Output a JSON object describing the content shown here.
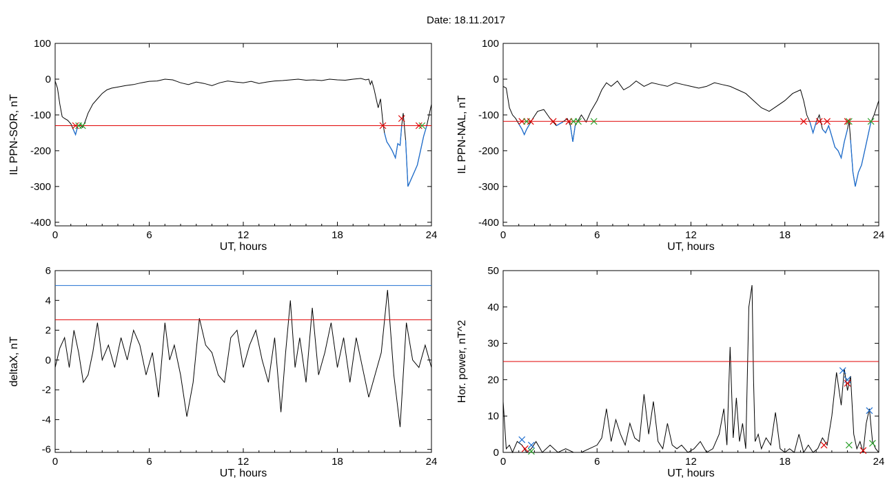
{
  "header": {
    "date_label": "Date:  18.11.2017"
  },
  "colors": {
    "trace": "#000000",
    "threshold": "#e00000",
    "blue_line": "#1f6fd0",
    "marker_red": "#e00000",
    "marker_green": "#2ca02c",
    "marker_blue": "#1f6fd0"
  },
  "chart_data": [
    {
      "id": "ppn-sor",
      "type": "line",
      "ylabel": "IL PPN-SOR, nT",
      "xlabel": "UT, hours",
      "xlim": [
        0,
        24
      ],
      "ylim": [
        -410,
        100
      ],
      "xticks": [
        0,
        6,
        12,
        18,
        24
      ],
      "yticks": [
        100,
        0,
        -100,
        -200,
        -300,
        -400
      ],
      "threshold": -130,
      "series": [
        {
          "x": [
            0,
            0.15,
            0.3,
            0.45,
            0.6,
            0.8,
            1.0,
            1.15,
            1.3,
            1.45,
            1.6,
            1.75,
            1.9,
            2.1,
            2.4,
            2.7,
            3.0,
            3.3,
            3.6,
            4.0,
            4.5,
            5.0,
            5.5,
            6.0,
            6.5,
            7.0,
            7.5,
            8.0,
            8.5,
            9.0,
            9.5,
            10.0,
            10.5,
            11.0,
            11.5,
            12.0,
            12.5,
            13.0,
            13.5,
            14.0,
            14.5,
            15.0,
            15.5,
            16.0,
            16.5,
            17.0,
            17.5,
            18.0,
            18.5,
            19.0,
            19.5,
            19.8,
            20.0,
            20.1,
            20.2,
            20.35,
            20.5,
            20.6,
            20.75,
            20.9,
            21.0,
            21.15,
            21.3,
            21.5,
            21.7,
            21.85,
            22.0,
            22.1,
            22.2,
            22.35,
            22.5,
            22.7,
            22.9,
            23.1,
            23.3,
            23.5,
            23.7,
            23.85,
            24.0
          ],
          "y": [
            -5,
            -25,
            -70,
            -105,
            -110,
            -115,
            -125,
            -140,
            -155,
            -130,
            -128,
            -135,
            -120,
            -95,
            -70,
            -55,
            -40,
            -30,
            -25,
            -22,
            -18,
            -15,
            -10,
            -6,
            -5,
            0,
            -2,
            -10,
            -15,
            -8,
            -12,
            -18,
            -10,
            -5,
            -8,
            -10,
            -6,
            -12,
            -8,
            -5,
            -4,
            -2,
            0,
            -3,
            -2,
            -4,
            0,
            -2,
            -3,
            0,
            2,
            -2,
            0,
            -15,
            -5,
            -30,
            -60,
            -80,
            -55,
            -120,
            -150,
            -175,
            -185,
            -200,
            -220,
            -180,
            -185,
            -130,
            -95,
            -170,
            -300,
            -280,
            -260,
            -240,
            -200,
            -160,
            -130,
            -100,
            -70
          ]
        }
      ],
      "markers": [
        {
          "x": 1.3,
          "y": -130,
          "color": "red"
        },
        {
          "x": 1.5,
          "y": -130,
          "color": "green"
        },
        {
          "x": 1.75,
          "y": -130,
          "color": "green"
        },
        {
          "x": 20.9,
          "y": -130,
          "color": "red"
        },
        {
          "x": 22.1,
          "y": -110,
          "color": "red"
        },
        {
          "x": 23.2,
          "y": -130,
          "color": "red"
        },
        {
          "x": 23.4,
          "y": -130,
          "color": "green"
        }
      ]
    },
    {
      "id": "ppn-nal",
      "type": "line",
      "ylabel": "IL PPN-NAL, nT",
      "xlabel": "UT, hours",
      "xlim": [
        0,
        24
      ],
      "ylim": [
        -410,
        100
      ],
      "xticks": [
        0,
        6,
        12,
        18,
        24
      ],
      "yticks": [
        100,
        0,
        -100,
        -200,
        -300,
        -400
      ],
      "threshold": -118,
      "series": [
        {
          "x": [
            0,
            0.2,
            0.4,
            0.6,
            0.8,
            1.0,
            1.2,
            1.35,
            1.5,
            1.7,
            1.9,
            2.2,
            2.6,
            3.0,
            3.4,
            3.8,
            4.1,
            4.3,
            4.45,
            4.6,
            4.8,
            5.0,
            5.3,
            5.6,
            6.0,
            6.3,
            6.6,
            6.9,
            7.3,
            7.7,
            8.1,
            8.5,
            9.0,
            9.5,
            10.0,
            10.5,
            11.0,
            11.5,
            12.0,
            12.5,
            13.0,
            13.5,
            14.0,
            14.5,
            15.0,
            15.5,
            16.0,
            16.5,
            17.0,
            17.5,
            18.0,
            18.5,
            19.0,
            19.2,
            19.4,
            19.6,
            19.8,
            20.0,
            20.2,
            20.4,
            20.6,
            20.8,
            21.0,
            21.2,
            21.4,
            21.6,
            21.8,
            22.0,
            22.1,
            22.2,
            22.35,
            22.5,
            22.7,
            22.9,
            23.1,
            23.3,
            23.5,
            23.7,
            24.0
          ],
          "y": [
            -20,
            -25,
            -80,
            -100,
            -110,
            -125,
            -140,
            -155,
            -140,
            -125,
            -110,
            -90,
            -85,
            -110,
            -130,
            -120,
            -110,
            -130,
            -175,
            -130,
            -115,
            -100,
            -120,
            -90,
            -60,
            -30,
            -10,
            -20,
            -5,
            -30,
            -20,
            -5,
            -20,
            -10,
            -15,
            -20,
            -10,
            -15,
            -20,
            -25,
            -20,
            -10,
            -15,
            -20,
            -30,
            -40,
            -60,
            -80,
            -90,
            -75,
            -60,
            -40,
            -30,
            -60,
            -100,
            -120,
            -150,
            -120,
            -100,
            -140,
            -150,
            -130,
            -160,
            -190,
            -200,
            -220,
            -175,
            -140,
            -115,
            -170,
            -260,
            -300,
            -260,
            -240,
            -200,
            -160,
            -120,
            -100,
            -60
          ]
        }
      ],
      "markers": [
        {
          "x": 1.2,
          "y": -118,
          "color": "red"
        },
        {
          "x": 1.5,
          "y": -118,
          "color": "green"
        },
        {
          "x": 1.75,
          "y": -118,
          "color": "red"
        },
        {
          "x": 3.2,
          "y": -118,
          "color": "red"
        },
        {
          "x": 4.2,
          "y": -118,
          "color": "red"
        },
        {
          "x": 4.5,
          "y": -118,
          "color": "green"
        },
        {
          "x": 4.8,
          "y": -118,
          "color": "green"
        },
        {
          "x": 5.8,
          "y": -118,
          "color": "green"
        },
        {
          "x": 19.2,
          "y": -118,
          "color": "red"
        },
        {
          "x": 20.2,
          "y": -118,
          "color": "red"
        },
        {
          "x": 20.7,
          "y": -118,
          "color": "red"
        },
        {
          "x": 22.0,
          "y": -118,
          "color": "red"
        },
        {
          "x": 22.1,
          "y": -118,
          "color": "green"
        },
        {
          "x": 23.5,
          "y": -118,
          "color": "green"
        }
      ]
    },
    {
      "id": "deltax",
      "type": "line",
      "ylabel": "deltaX, nT",
      "xlabel": "UT, hours",
      "xlim": [
        0,
        24
      ],
      "ylim": [
        -6.2,
        6
      ],
      "xticks": [
        0,
        6,
        12,
        18,
        24
      ],
      "yticks": [
        6,
        4,
        2,
        0,
        -2,
        -4,
        -6
      ],
      "threshold": 2.7,
      "threshold2": 5.0,
      "series": [
        {
          "x": [
            0,
            0.3,
            0.6,
            0.9,
            1.2,
            1.5,
            1.8,
            2.1,
            2.4,
            2.7,
            3.0,
            3.4,
            3.8,
            4.2,
            4.6,
            5.0,
            5.4,
            5.8,
            6.2,
            6.6,
            7.0,
            7.3,
            7.6,
            8.0,
            8.4,
            8.8,
            9.2,
            9.6,
            10.0,
            10.4,
            10.8,
            11.2,
            11.6,
            12.0,
            12.4,
            12.8,
            13.2,
            13.6,
            14.0,
            14.4,
            14.7,
            15.0,
            15.3,
            15.6,
            16.0,
            16.4,
            16.8,
            17.2,
            17.6,
            18.0,
            18.4,
            18.8,
            19.2,
            19.6,
            20.0,
            20.4,
            20.8,
            21.2,
            21.6,
            22.0,
            22.4,
            22.8,
            23.2,
            23.6,
            24.0
          ],
          "y": [
            -0.5,
            0.8,
            1.5,
            -0.5,
            2.0,
            0.5,
            -1.5,
            -1.0,
            0.5,
            2.5,
            0.0,
            1.0,
            -0.5,
            1.5,
            0.0,
            2.0,
            1.0,
            -1.0,
            0.5,
            -2.5,
            2.5,
            0.0,
            1.0,
            -1.0,
            -3.8,
            -1.5,
            2.8,
            1.0,
            0.5,
            -1.0,
            -1.5,
            1.5,
            2.0,
            -0.5,
            1.0,
            2.0,
            0.0,
            -1.5,
            1.5,
            -3.5,
            0.5,
            4.0,
            -0.5,
            1.5,
            -1.5,
            3.5,
            -1.0,
            0.5,
            2.5,
            -0.5,
            1.5,
            -1.5,
            1.5,
            -0.5,
            -2.5,
            -1.0,
            0.5,
            4.7,
            -1.0,
            -4.5,
            2.5,
            0.0,
            -0.5,
            1.0,
            -0.5
          ]
        }
      ],
      "markers": []
    },
    {
      "id": "hor-power",
      "type": "line",
      "ylabel": "Hor. power, nT^2",
      "xlabel": "UT, hours",
      "xlim": [
        0,
        24
      ],
      "ylim": [
        0,
        50
      ],
      "xticks": [
        0,
        6,
        12,
        18,
        24
      ],
      "yticks": [
        50,
        40,
        30,
        20,
        10,
        0
      ],
      "threshold": 25,
      "series": [
        {
          "x": [
            0,
            0.2,
            0.4,
            0.6,
            0.9,
            1.2,
            1.5,
            1.8,
            2.1,
            2.5,
            3.0,
            3.5,
            4.0,
            4.5,
            5.0,
            5.5,
            6.0,
            6.3,
            6.6,
            6.9,
            7.2,
            7.5,
            7.8,
            8.1,
            8.4,
            8.7,
            9.0,
            9.3,
            9.6,
            9.9,
            10.2,
            10.5,
            10.8,
            11.1,
            11.4,
            11.8,
            12.2,
            12.6,
            13.0,
            13.4,
            13.8,
            14.1,
            14.3,
            14.5,
            14.7,
            14.9,
            15.1,
            15.3,
            15.5,
            15.7,
            15.9,
            16.0,
            16.1,
            16.3,
            16.5,
            16.8,
            17.1,
            17.4,
            17.7,
            18.0,
            18.3,
            18.6,
            18.9,
            19.2,
            19.5,
            19.8,
            20.1,
            20.4,
            20.7,
            21.0,
            21.3,
            21.6,
            21.8,
            22.0,
            22.2,
            22.4,
            22.6,
            22.8,
            23.0,
            23.2,
            23.4,
            23.6,
            23.8,
            24.0
          ],
          "y": [
            14,
            1,
            2,
            0,
            3,
            2,
            0,
            1,
            3,
            0,
            2,
            0,
            1,
            0,
            0,
            1,
            2,
            4,
            12,
            3,
            9,
            5,
            2,
            8,
            4,
            3,
            16,
            5,
            14,
            3,
            1,
            8,
            2,
            1,
            2,
            0,
            1,
            3,
            0,
            1,
            5,
            12,
            2,
            29,
            4,
            15,
            3,
            8,
            1,
            40,
            46,
            20,
            3,
            5,
            1,
            4,
            2,
            11,
            1,
            0,
            1,
            0,
            5,
            0,
            2,
            0,
            1,
            4,
            2,
            10,
            22,
            13,
            23,
            17,
            21,
            5,
            1,
            3,
            0,
            8,
            12,
            3,
            1,
            0
          ]
        }
      ],
      "markers": [
        {
          "x": 1.2,
          "y": 3.5,
          "color": "blue"
        },
        {
          "x": 1.4,
          "y": 1.0,
          "color": "red"
        },
        {
          "x": 1.8,
          "y": 2.0,
          "color": "blue"
        },
        {
          "x": 1.8,
          "y": 0.3,
          "color": "green"
        },
        {
          "x": 20.5,
          "y": 2.0,
          "color": "red"
        },
        {
          "x": 21.7,
          "y": 22.5,
          "color": "blue"
        },
        {
          "x": 22.0,
          "y": 20.0,
          "color": "blue"
        },
        {
          "x": 22.0,
          "y": 19.0,
          "color": "red"
        },
        {
          "x": 22.1,
          "y": 2.0,
          "color": "green"
        },
        {
          "x": 23.0,
          "y": 0.5,
          "color": "red"
        },
        {
          "x": 23.4,
          "y": 11.5,
          "color": "blue"
        },
        {
          "x": 23.6,
          "y": 2.5,
          "color": "green"
        }
      ]
    }
  ]
}
